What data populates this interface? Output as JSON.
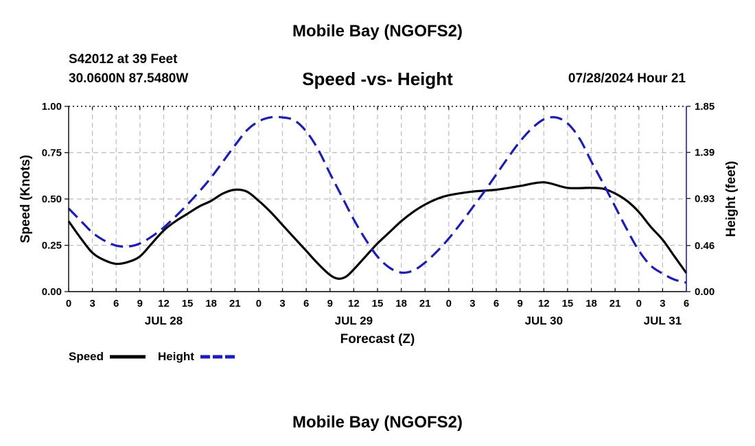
{
  "page": {
    "title": "Mobile Bay (NGOFS2)",
    "station": "S42012 at 39 Feet",
    "coords": "30.0600N  87.5480W",
    "forecast_time": "07/28/2024 Hour 21",
    "footer_title": "Mobile Bay (NGOFS2)"
  },
  "colors": {
    "speed": "#000000",
    "height": "#1a1acc",
    "grid": "#bbbbbb"
  },
  "chart_data": {
    "type": "line",
    "title": "Speed -vs- Height",
    "xlabel": "Forecast (Z)",
    "ylabel": "Speed (Knots)",
    "y2label": "Height (feet)",
    "ylim": [
      0,
      1.0
    ],
    "y2lim": [
      0,
      1.85
    ],
    "xlim": [
      0,
      78
    ],
    "x_unit": "hours from 0Z JUL 28",
    "x_ticks": [
      0,
      3,
      6,
      9,
      12,
      15,
      18,
      21,
      24,
      27,
      30,
      33,
      36,
      39,
      42,
      45,
      48,
      51,
      54,
      57,
      60,
      63,
      66,
      69,
      72,
      75,
      78
    ],
    "x_tick_labels": [
      "0",
      "3",
      "6",
      "9",
      "12",
      "15",
      "18",
      "21",
      "0",
      "3",
      "6",
      "9",
      "12",
      "15",
      "18",
      "21",
      "0",
      "3",
      "6",
      "9",
      "12",
      "15",
      "18",
      "21",
      "0",
      "3",
      "6"
    ],
    "y_ticks": [
      0,
      0.25,
      0.5,
      0.75,
      1.0
    ],
    "y_tick_labels": [
      "0.00",
      "0.25",
      "0.50",
      "0.75",
      "1.00"
    ],
    "y2_ticks": [
      0,
      0.46,
      0.93,
      1.39,
      1.85
    ],
    "y2_tick_labels": [
      "0.00",
      "0.46",
      "0.93",
      "1.39",
      "1.85"
    ],
    "date_labels": [
      {
        "x": 12,
        "label": "JUL 28"
      },
      {
        "x": 36,
        "label": "JUL 29"
      },
      {
        "x": 60,
        "label": "JUL 30"
      },
      {
        "x": 75,
        "label": "JUL 31"
      }
    ],
    "grid": true,
    "legend": "bottom-left",
    "series": [
      {
        "name": "Speed",
        "axis": "left",
        "style": "solid",
        "x": [
          0,
          1.5,
          3,
          4.5,
          6,
          7.5,
          9,
          10.5,
          12,
          13.5,
          15,
          16.5,
          18,
          19.5,
          21,
          22.5,
          24,
          25.5,
          27,
          28.5,
          30,
          31.5,
          33,
          34,
          35,
          36,
          37.5,
          39,
          40.5,
          42,
          43.5,
          45,
          46.5,
          48,
          51,
          54,
          57,
          60,
          63,
          66,
          67.5,
          69,
          70.5,
          72,
          73.5,
          75,
          76.5,
          78
        ],
        "y": [
          0.38,
          0.29,
          0.21,
          0.17,
          0.15,
          0.16,
          0.19,
          0.26,
          0.33,
          0.38,
          0.42,
          0.46,
          0.49,
          0.53,
          0.55,
          0.54,
          0.49,
          0.43,
          0.36,
          0.29,
          0.22,
          0.15,
          0.09,
          0.07,
          0.08,
          0.12,
          0.19,
          0.26,
          0.32,
          0.38,
          0.43,
          0.47,
          0.5,
          0.52,
          0.54,
          0.55,
          0.57,
          0.59,
          0.56,
          0.56,
          0.555,
          0.53,
          0.49,
          0.43,
          0.35,
          0.28,
          0.19,
          0.1
        ]
      },
      {
        "name": "Height",
        "axis": "right",
        "style": "dashed",
        "x": [
          0,
          1.5,
          3,
          4.5,
          6,
          7.5,
          9,
          10.5,
          12,
          13.5,
          15,
          16.5,
          18,
          19.5,
          21,
          22.5,
          24,
          25.5,
          27,
          28.5,
          30,
          31.5,
          33,
          34.5,
          36,
          37.5,
          39,
          40.5,
          42,
          43.5,
          45,
          46.5,
          48,
          49.5,
          51,
          52.5,
          54,
          55.5,
          57,
          58.5,
          60,
          61.5,
          63,
          64.5,
          66,
          67.5,
          69,
          70.5,
          72,
          73.5,
          75,
          76.5,
          78
        ],
        "y": [
          0.83,
          0.71,
          0.59,
          0.51,
          0.46,
          0.45,
          0.48,
          0.55,
          0.64,
          0.75,
          0.87,
          1.0,
          1.14,
          1.3,
          1.46,
          1.61,
          1.7,
          1.74,
          1.74,
          1.71,
          1.6,
          1.42,
          1.18,
          0.95,
          0.72,
          0.52,
          0.35,
          0.24,
          0.19,
          0.21,
          0.29,
          0.4,
          0.53,
          0.68,
          0.84,
          1.0,
          1.17,
          1.34,
          1.5,
          1.63,
          1.72,
          1.74,
          1.68,
          1.53,
          1.3,
          1.08,
          0.85,
          0.62,
          0.41,
          0.26,
          0.18,
          0.12,
          0.09
        ]
      }
    ]
  },
  "legend": {
    "speed_label": "Speed",
    "height_label": "Height"
  }
}
